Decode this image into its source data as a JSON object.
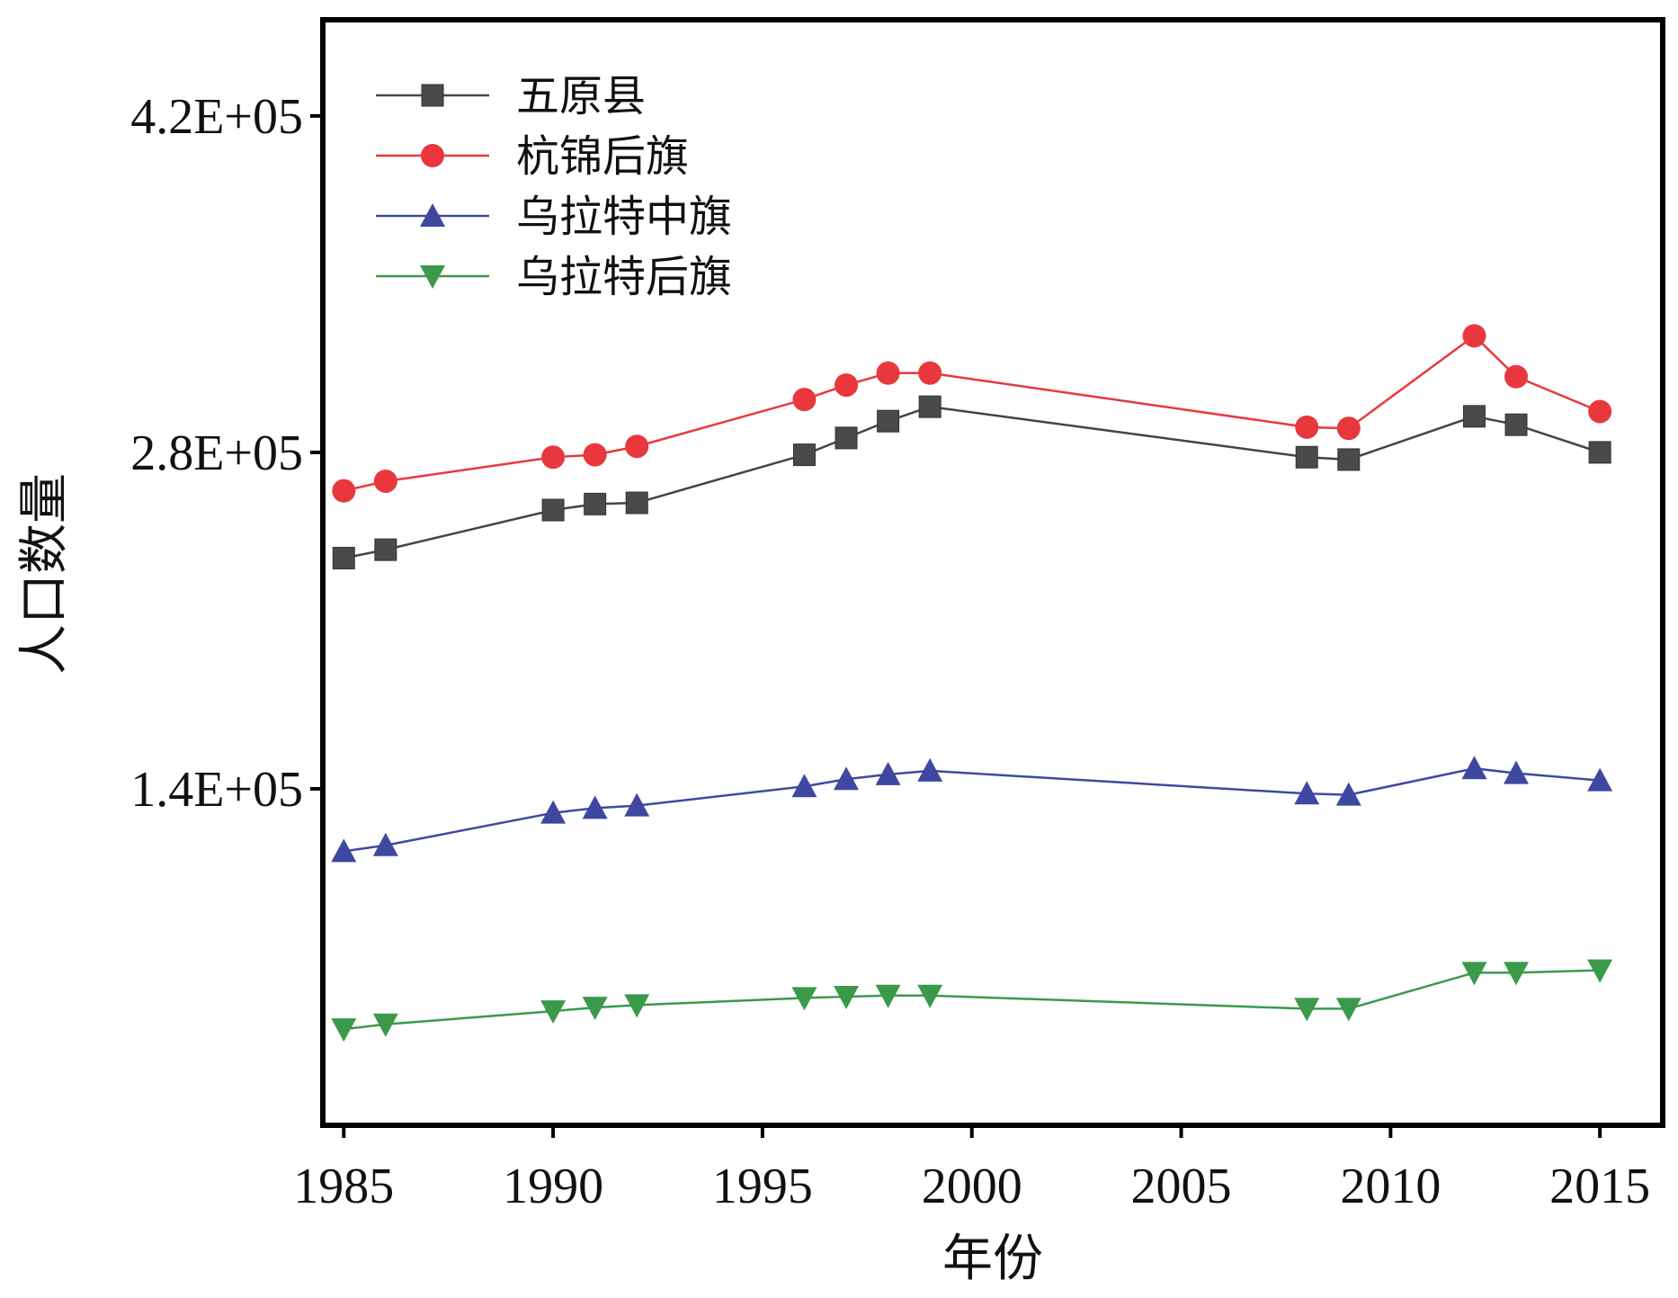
{
  "chart_data": {
    "type": "line",
    "title": "",
    "xlabel": "年份",
    "ylabel": "人口数量",
    "xlim": [
      1984.5,
      2016.5
    ],
    "ylim": [
      0,
      460000
    ],
    "xticks": [
      1985,
      1990,
      1995,
      2000,
      2005,
      2010,
      2015
    ],
    "xtick_labels": [
      "1985",
      "1990",
      "1995",
      "2000",
      "2005",
      "2010",
      "2015"
    ],
    "yticks": [
      140000,
      280000,
      420000
    ],
    "ytick_labels": [
      "1.4E+05",
      "2.8E+05",
      "4.2E+05"
    ],
    "grid": false,
    "legend_position": "top-left",
    "x": [
      1985,
      1986,
      1990,
      1991,
      1992,
      1996,
      1997,
      1998,
      1999,
      2008,
      2009,
      2012,
      2013,
      2015
    ],
    "series": [
      {
        "name": "五原县",
        "color": "#444444",
        "marker": "square",
        "values": [
          236000,
          239500,
          256000,
          258500,
          259000,
          279000,
          286000,
          293000,
          299000,
          278000,
          277000,
          295000,
          291500,
          280000
        ]
      },
      {
        "name": "杭锦后旗",
        "color": "#e8383d",
        "marker": "circle",
        "values": [
          264000,
          268000,
          278000,
          279000,
          282500,
          302000,
          308000,
          313000,
          313000,
          290500,
          290000,
          328500,
          311500,
          297000
        ]
      },
      {
        "name": "乌拉特中旗",
        "color": "#3f48a0",
        "marker": "triangle-up",
        "values": [
          114000,
          116500,
          130000,
          132000,
          133000,
          141000,
          144000,
          146000,
          147500,
          138000,
          137500,
          148500,
          146500,
          143500
        ]
      },
      {
        "name": "乌拉特后旗",
        "color": "#3a9a4a",
        "marker": "triangle-down",
        "values": [
          40000,
          42000,
          47500,
          49000,
          50000,
          53000,
          53500,
          54000,
          54000,
          48500,
          48500,
          63500,
          63500,
          64500
        ]
      }
    ]
  }
}
